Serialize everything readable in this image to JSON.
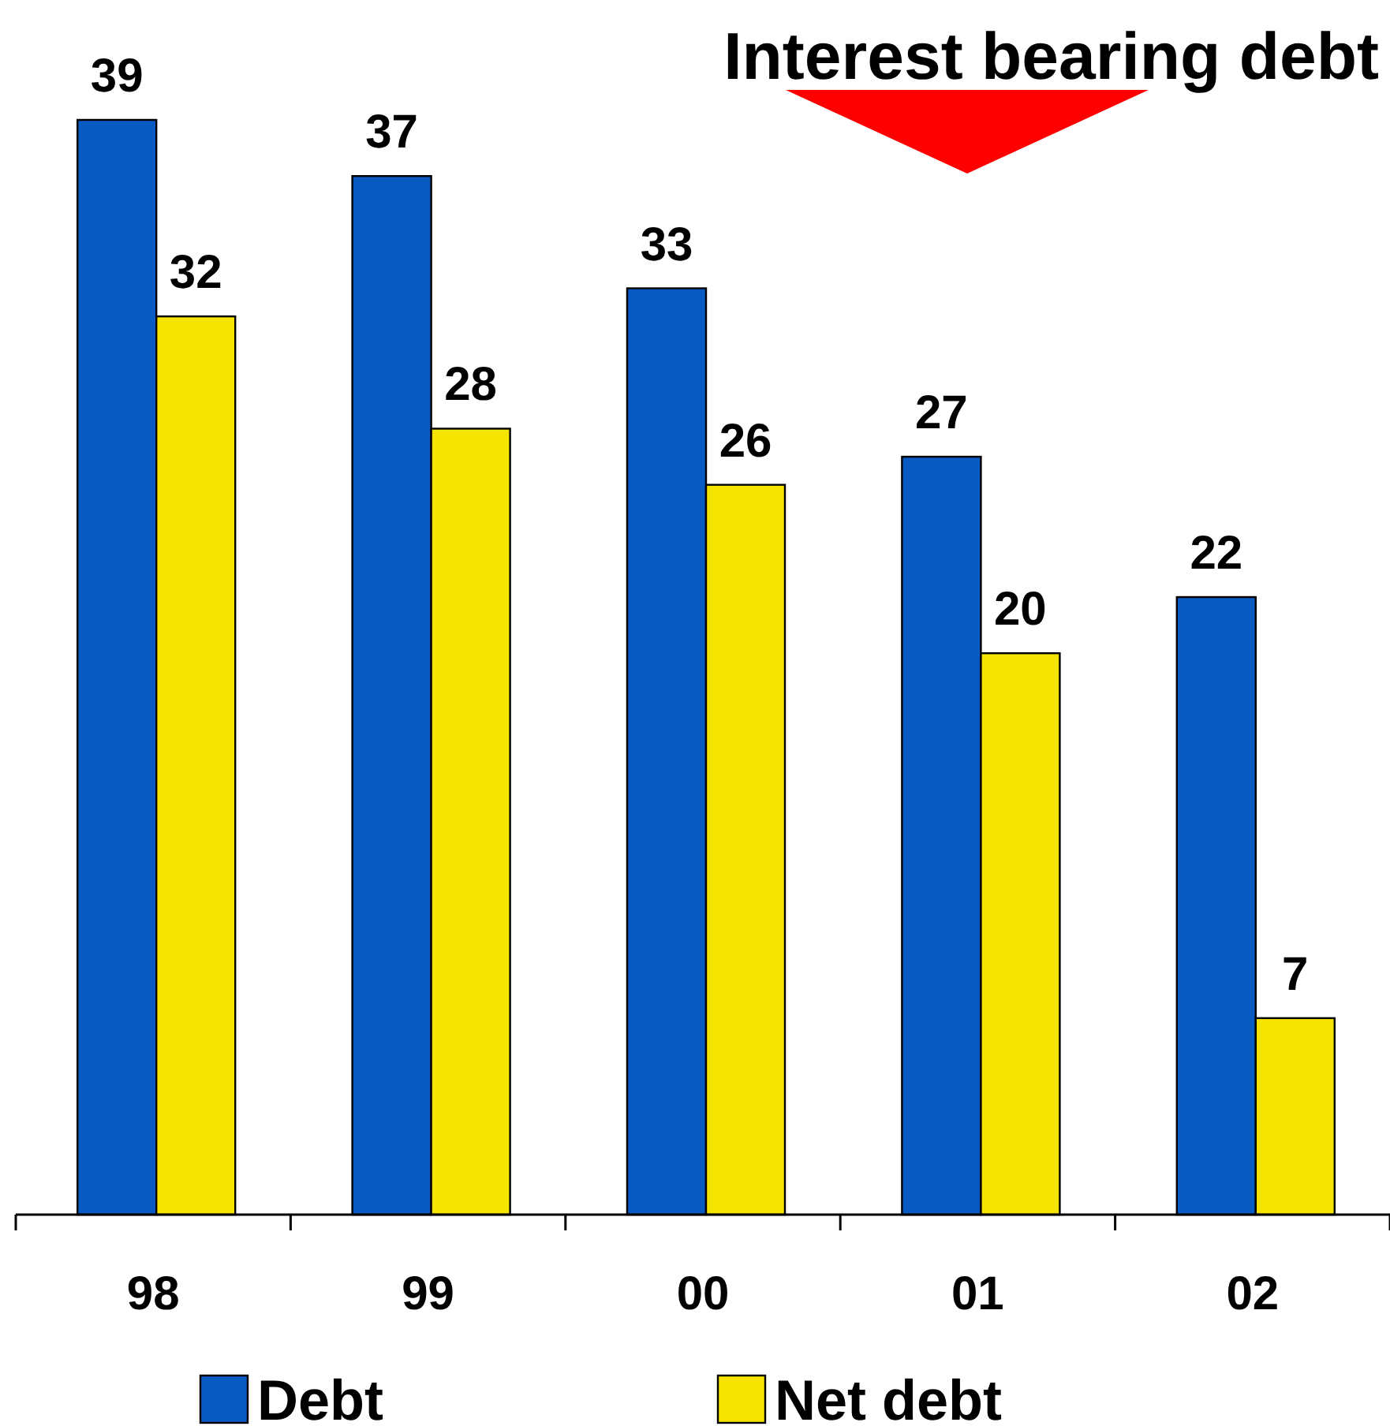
{
  "chart_data": {
    "type": "bar",
    "title": "Interest bearing debt",
    "categories": [
      "98",
      "99",
      "00",
      "01",
      "02"
    ],
    "series": [
      {
        "name": "Debt",
        "color": "#0a5ac4",
        "values": [
          39,
          37,
          33,
          27,
          22
        ]
      },
      {
        "name": "Net debt",
        "color": "#f5e400",
        "values": [
          32,
          28,
          26,
          20,
          7
        ]
      }
    ],
    "data_labels": true,
    "legend": "bottom",
    "grid": false
  }
}
